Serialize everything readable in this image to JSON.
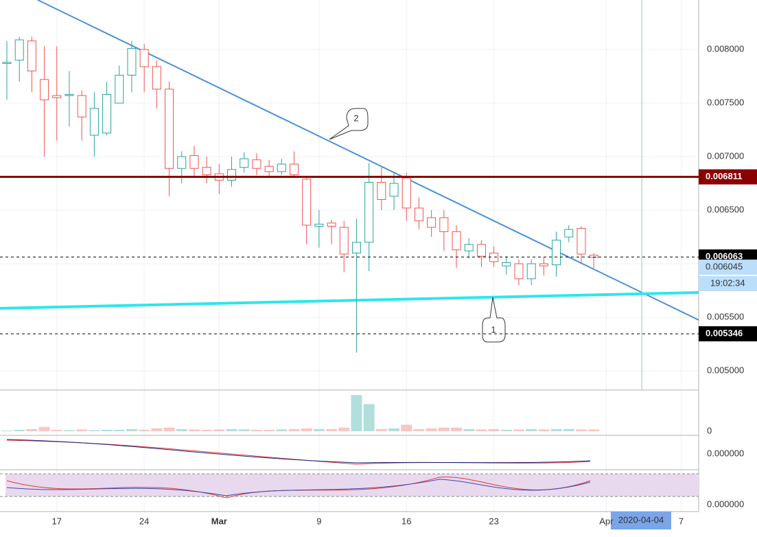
{
  "chart_data": {
    "type": "candlestick",
    "open": [
      0.00787,
      0.0079,
      0.00808,
      0.00772,
      0.00757,
      0.00757,
      0.00757,
      0.0072,
      0.00722,
      0.0075,
      0.00776,
      0.008,
      0.00784,
      0.00763,
      0.00689,
      0.00701,
      0.0069,
      0.00684,
      0.00678,
      0.0069,
      0.00697,
      0.00691,
      0.00686,
      0.00693,
      0.00679,
      0.00635,
      0.00638,
      0.00634,
      0.0061,
      0.0062,
      0.00676,
      0.00663,
      0.0068,
      0.00652,
      0.00643,
      0.00643,
      0.0063,
      0.00612,
      0.00618,
      0.0061,
      0.00598,
      0.006,
      0.00586,
      0.006,
      0.00599,
      0.00625,
      0.00633,
      0.00608
    ],
    "high": [
      0.00808,
      0.00812,
      0.00812,
      0.00803,
      0.00803,
      0.0078,
      0.00762,
      0.0076,
      0.0077,
      0.00785,
      0.00808,
      0.00805,
      0.0079,
      0.0077,
      0.00705,
      0.0071,
      0.007,
      0.00693,
      0.007,
      0.00704,
      0.00703,
      0.00697,
      0.00698,
      0.00705,
      0.00681,
      0.0065,
      0.00641,
      0.0064,
      0.00642,
      0.00694,
      0.0069,
      0.00685,
      0.00685,
      0.00662,
      0.0065,
      0.0065,
      0.00636,
      0.00624,
      0.00622,
      0.00616,
      0.00607,
      0.00604,
      0.00604,
      0.00606,
      0.0063,
      0.00636,
      0.00635,
      0.0061
    ],
    "low": [
      0.00753,
      0.0077,
      0.0076,
      0.007,
      0.00715,
      0.00728,
      0.00715,
      0.007,
      0.0072,
      0.0075,
      0.0076,
      0.0076,
      0.00745,
      0.00663,
      0.00675,
      0.0068,
      0.00675,
      0.00665,
      0.00672,
      0.00685,
      0.00683,
      0.0068,
      0.00683,
      0.0068,
      0.00618,
      0.00615,
      0.00618,
      0.00592,
      0.00517,
      0.00593,
      0.0065,
      0.0065,
      0.0064,
      0.00632,
      0.00625,
      0.00612,
      0.00596,
      0.00605,
      0.00597,
      0.00597,
      0.0059,
      0.0058,
      0.0058,
      0.00589,
      0.00588,
      0.0062,
      0.006,
      0.00596
    ],
    "close": [
      0.00788,
      0.00809,
      0.0078,
      0.00753,
      0.00755,
      0.00758,
      0.00737,
      0.00745,
      0.00758,
      0.00776,
      0.00801,
      0.00784,
      0.00763,
      0.00689,
      0.007,
      0.00689,
      0.00683,
      0.00678,
      0.00688,
      0.00698,
      0.00689,
      0.00686,
      0.00693,
      0.00683,
      0.00636,
      0.00637,
      0.00635,
      0.00609,
      0.0062,
      0.00676,
      0.0066,
      0.00675,
      0.00652,
      0.0064,
      0.00634,
      0.0063,
      0.00613,
      0.00618,
      0.00607,
      0.00602,
      0.00601,
      0.00586,
      0.006,
      0.00598,
      0.00622,
      0.00632,
      0.00609,
      0.00606
    ],
    "volume": [
      2,
      4,
      6,
      12,
      4,
      3,
      5,
      3,
      4,
      4,
      6,
      4,
      8,
      10,
      6,
      5,
      4,
      5,
      6,
      5,
      4,
      4,
      5,
      6,
      8,
      6,
      6,
      10,
      100,
      75,
      6,
      8,
      18,
      6,
      8,
      10,
      10,
      6,
      5,
      6,
      4,
      5,
      6,
      5,
      6,
      6,
      5,
      5
    ],
    "volume_ylim": [
      0,
      110
    ],
    "volume_yticks": [
      0
    ],
    "xlim": [
      -0.55,
      55.4
    ],
    "xticks": [
      {
        "value": 4,
        "label": "17"
      },
      {
        "value": 11,
        "label": "24"
      },
      {
        "value": 17,
        "label": "Mar"
      },
      {
        "value": 25,
        "label": "9"
      },
      {
        "value": 32,
        "label": "16"
      },
      {
        "value": 39,
        "label": "23"
      },
      {
        "value": 48,
        "label": "Apr"
      },
      {
        "value": 54,
        "label": "7"
      }
    ],
    "ylim": [
      0.004821,
      0.008462
    ],
    "yticks": [
      {
        "value": 0.005,
        "label": "0.005000"
      },
      {
        "value": 0.0055,
        "label": "0.005500"
      },
      {
        "value": 0.006,
        "label": "0.006000"
      },
      {
        "value": 0.0065,
        "label": "0.006500"
      },
      {
        "value": 0.007,
        "label": "0.007000"
      },
      {
        "value": 0.0075,
        "label": "0.007500"
      },
      {
        "value": 0.008,
        "label": "0.008000"
      }
    ],
    "levels": [
      {
        "value": 0.006811,
        "color": "#8b0000",
        "style": "solid"
      },
      {
        "value": 0.006063,
        "color": "#000000",
        "style": "dashed"
      },
      {
        "value": 0.005346,
        "color": "#000000",
        "style": "dashed"
      }
    ],
    "bid_price": 0.006045,
    "countdown": "19:02:34",
    "indicator_ticks": [
      {
        "value": 0,
        "label": "0.000000"
      },
      {
        "value": 0,
        "label": "0.000000"
      }
    ],
    "crosshair_label": "2020-04-04",
    "annotations": [
      "1",
      "2"
    ],
    "up_color": "#26a69a",
    "down_color": "#ef5350"
  }
}
